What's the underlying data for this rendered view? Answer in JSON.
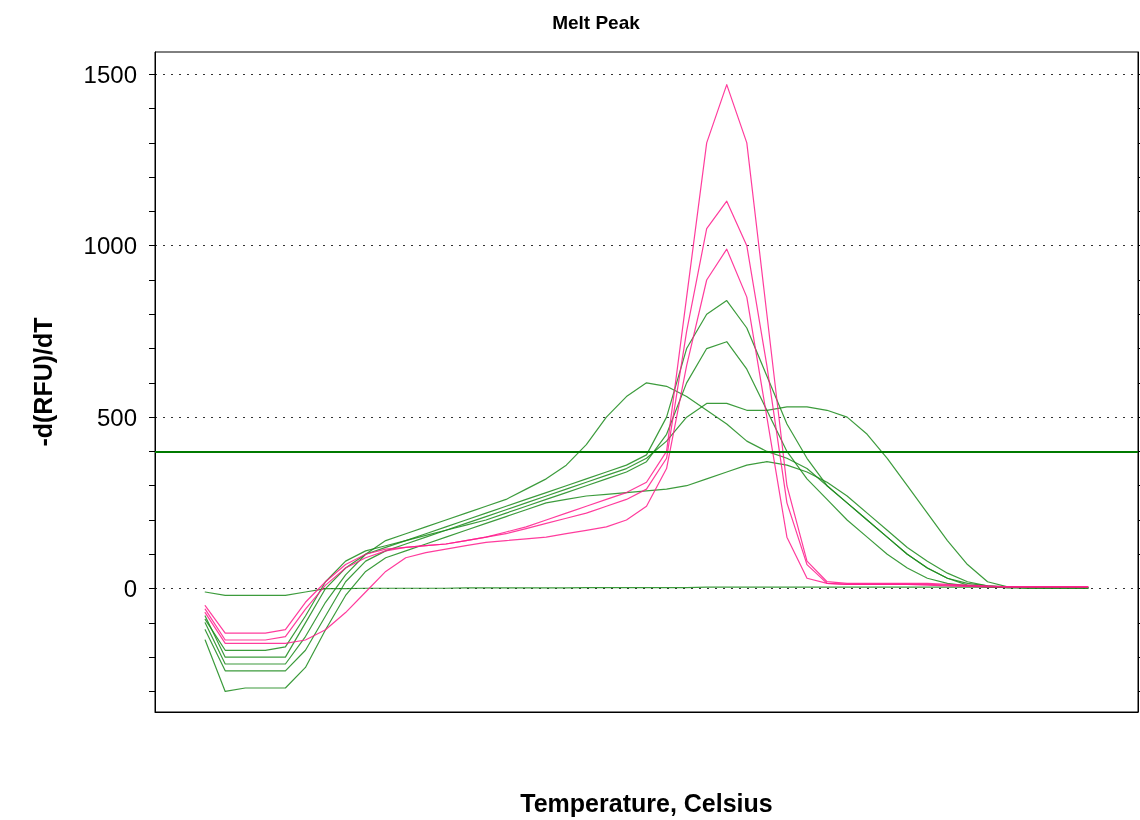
{
  "chart_data": {
    "type": "line",
    "title": "Melt Peak",
    "xlabel": "Temperature, Celsius",
    "ylabel": "-d(RFU)/dT",
    "categories": [
      null,
      null,
      null,
      null,
      null,
      null,
      null,
      null,
      null,
      null,
      null,
      null,
      null,
      null,
      null,
      null,
      null,
      null,
      null,
      null,
      null,
      null,
      null,
      null,
      null,
      null,
      null,
      null,
      null,
      null,
      null,
      null,
      null,
      null,
      null,
      null,
      null,
      null,
      null,
      null,
      null,
      null,
      null,
      null,
      null,
      null,
      null,
      null,
      null
    ],
    "series": [
      {
        "color": "#1a8a1a",
        "values": [
          null,
          null,
          -80,
          -200,
          -200,
          -200,
          -200,
          -100,
          0,
          60,
          100,
          120,
          140,
          160,
          180,
          200,
          220,
          240,
          260,
          280,
          300,
          320,
          340,
          360,
          390,
          500,
          700,
          800,
          840,
          760,
          620,
          480,
          380,
          300,
          250,
          200,
          150,
          100,
          60,
          30,
          10,
          5,
          3,
          2,
          2,
          2,
          2,
          null,
          null
        ]
      },
      {
        "color": "#1a8a1a",
        "values": [
          null,
          null,
          -100,
          -220,
          -220,
          -220,
          -220,
          -140,
          -40,
          40,
          100,
          140,
          160,
          180,
          200,
          220,
          240,
          260,
          290,
          320,
          360,
          420,
          500,
          560,
          600,
          590,
          560,
          520,
          480,
          430,
          400,
          380,
          350,
          300,
          250,
          200,
          150,
          100,
          60,
          30,
          15,
          8,
          5,
          3,
          2,
          2,
          2,
          null,
          null
        ]
      },
      {
        "color": "#1a8a1a",
        "values": [
          null,
          null,
          -120,
          -240,
          -240,
          -240,
          -240,
          -180,
          -80,
          20,
          80,
          110,
          130,
          150,
          170,
          190,
          210,
          230,
          250,
          270,
          290,
          310,
          330,
          350,
          380,
          430,
          500,
          540,
          540,
          520,
          520,
          530,
          530,
          520,
          500,
          450,
          380,
          300,
          220,
          140,
          70,
          20,
          5,
          2,
          2,
          2,
          2,
          null,
          null
        ]
      },
      {
        "color": "#1a8a1a",
        "values": [
          null,
          null,
          -150,
          -300,
          -290,
          -290,
          -290,
          -230,
          -120,
          -20,
          50,
          90,
          110,
          130,
          150,
          170,
          190,
          210,
          230,
          250,
          260,
          270,
          275,
          280,
          285,
          290,
          300,
          320,
          340,
          360,
          370,
          360,
          340,
          310,
          270,
          220,
          170,
          120,
          80,
          45,
          20,
          8,
          3,
          2,
          2,
          2,
          2,
          null,
          null
        ]
      },
      {
        "color": "#1a8a1a",
        "values": [
          null,
          null,
          -90,
          -180,
          -180,
          -180,
          -170,
          -80,
          20,
          80,
          110,
          125,
          140,
          155,
          170,
          185,
          200,
          220,
          240,
          260,
          280,
          300,
          320,
          340,
          370,
          450,
          600,
          700,
          720,
          640,
          520,
          400,
          320,
          260,
          200,
          150,
          100,
          60,
          30,
          15,
          8,
          5,
          3,
          2,
          2,
          2,
          2,
          null,
          null
        ]
      },
      {
        "color": "#1a8a1a",
        "values": [
          null,
          null,
          -10,
          -20,
          -20,
          -20,
          -20,
          -10,
          0,
          0,
          1,
          1,
          1,
          1,
          1,
          2,
          2,
          2,
          2,
          2,
          2,
          3,
          3,
          3,
          3,
          3,
          3,
          4,
          4,
          4,
          4,
          4,
          4,
          4,
          4,
          4,
          4,
          4,
          4,
          4,
          4,
          4,
          4,
          4,
          4,
          4,
          3,
          null,
          null
        ]
      },
      {
        "color": "#ff1a8c",
        "values": [
          null,
          null,
          -60,
          -150,
          -150,
          -150,
          -140,
          -60,
          10,
          60,
          90,
          110,
          120,
          125,
          130,
          140,
          150,
          165,
          180,
          200,
          220,
          240,
          260,
          280,
          310,
          400,
          850,
          1300,
          1470,
          1300,
          800,
          300,
          80,
          20,
          15,
          15,
          15,
          15,
          15,
          12,
          10,
          8,
          5,
          5,
          5,
          5,
          5,
          null,
          null
        ]
      },
      {
        "color": "#ff1a8c",
        "values": [
          null,
          null,
          -50,
          -130,
          -130,
          -130,
          -120,
          -40,
          20,
          70,
          100,
          115,
          120,
          125,
          130,
          140,
          150,
          160,
          175,
          190,
          205,
          220,
          240,
          260,
          290,
          380,
          750,
          1050,
          1130,
          1000,
          650,
          250,
          70,
          15,
          12,
          12,
          12,
          12,
          12,
          10,
          8,
          6,
          5,
          5,
          5,
          5,
          5,
          null,
          null
        ]
      },
      {
        "color": "#ff1a8c",
        "values": [
          null,
          null,
          -70,
          -160,
          -160,
          -160,
          -160,
          -150,
          -120,
          -70,
          -10,
          50,
          90,
          105,
          115,
          125,
          135,
          140,
          145,
          150,
          160,
          170,
          180,
          200,
          240,
          350,
          650,
          900,
          990,
          850,
          500,
          150,
          30,
          15,
          12,
          12,
          12,
          12,
          10,
          8,
          6,
          5,
          5,
          5,
          5,
          5,
          5,
          null,
          null
        ]
      }
    ],
    "ylim": [
      -360,
      1565
    ],
    "yticks": [
      {
        "value": -300,
        "label": null
      },
      {
        "value": -200,
        "label": null
      },
      {
        "value": -100,
        "label": null
      },
      0,
      {
        "value": 100,
        "label": null
      },
      {
        "value": 200,
        "label": null
      },
      {
        "value": 300,
        "label": null
      },
      {
        "value": 400,
        "label": null
      },
      500,
      {
        "value": 600,
        "label": null
      },
      {
        "value": 700,
        "label": null
      },
      {
        "value": 800,
        "label": null
      },
      {
        "value": 900,
        "label": null
      },
      1000,
      {
        "value": 1100,
        "label": null
      },
      {
        "value": 1200,
        "label": null
      },
      {
        "value": 1300,
        "label": null
      },
      {
        "value": 1400,
        "label": null
      },
      1500
    ],
    "ref_lines": [
      {
        "axis": "y",
        "value": 400,
        "color": "#007a00",
        "line_style": "solid"
      }
    ],
    "grid": "y",
    "tick_labels": "y",
    "marker": "none",
    "line_style": "solid"
  }
}
